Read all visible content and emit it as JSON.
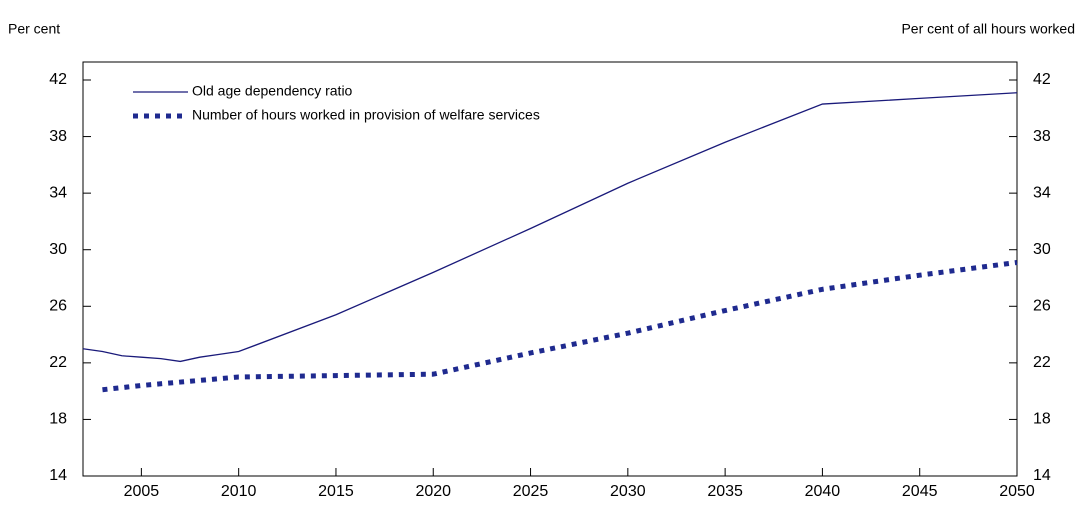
{
  "chart_data": {
    "type": "line",
    "y_label": "Per cent",
    "y2_label": "Per cent of all hours worked",
    "xlim": [
      2002,
      2050
    ],
    "xticks": [
      2005,
      2010,
      2015,
      2020,
      2025,
      2030,
      2035,
      2040,
      2045,
      2050
    ],
    "ylim": [
      14,
      42
    ],
    "yticks": [
      14,
      18,
      22,
      26,
      30,
      34,
      38,
      42
    ],
    "y2lim": [
      14,
      42
    ],
    "y2ticks": [
      14,
      18,
      22,
      26,
      30,
      34,
      38,
      42
    ],
    "legend": "upper left",
    "series": [
      {
        "name": "Old age dependency ratio",
        "color": "#1a1a7a",
        "style": "solid",
        "x": [
          2002,
          2003,
          2004,
          2005,
          2006,
          2007,
          2008,
          2009,
          2010,
          2015,
          2020,
          2025,
          2030,
          2035,
          2040,
          2045,
          2050
        ],
        "values": [
          23.0,
          22.8,
          22.5,
          22.4,
          22.3,
          22.1,
          22.4,
          22.6,
          22.8,
          25.4,
          28.4,
          31.5,
          34.7,
          37.6,
          40.3,
          40.7,
          41.1
        ]
      },
      {
        "name": "Number of hours worked in provision of welfare services",
        "color": "#1f2a8f",
        "style": "dotted",
        "axis": "y2",
        "x": [
          2003,
          2005,
          2010,
          2015,
          2020,
          2025,
          2030,
          2035,
          2040,
          2045,
          2050
        ],
        "values": [
          20.1,
          20.4,
          21.0,
          21.1,
          21.2,
          22.7,
          24.1,
          25.7,
          27.2,
          28.2,
          29.1
        ]
      }
    ]
  }
}
